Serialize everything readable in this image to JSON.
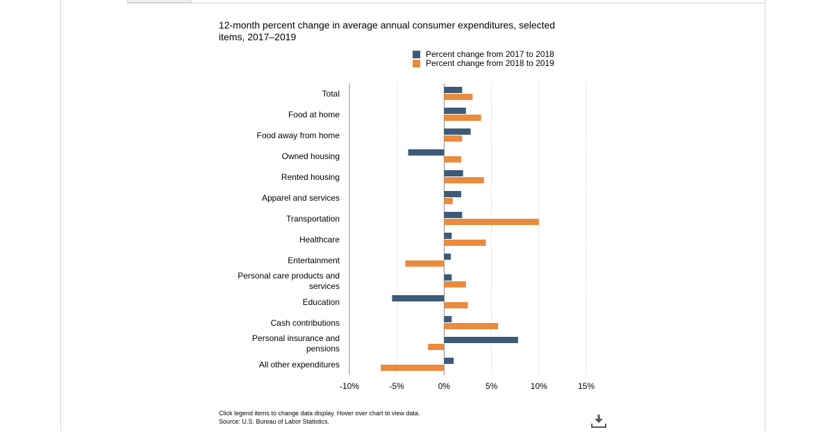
{
  "chart_data": {
    "type": "bar",
    "orientation": "horizontal",
    "title": "12-month percent change in average annual consumer expenditures, selected items, 2017–2019",
    "categories": [
      "Total",
      "Food at home",
      "Food away from home",
      "Owned housing",
      "Rented housing",
      "Apparel and services",
      "Transportation",
      "Healthcare",
      "Entertainment",
      "Personal care products and services",
      "Education",
      "Cash contributions",
      "Personal insurance and pensions",
      "All other expenditures"
    ],
    "series": [
      {
        "name": "Percent change from 2017 to 2018",
        "color": "#3d5a78",
        "values": [
          1.9,
          2.3,
          2.8,
          -3.8,
          2.0,
          1.8,
          1.9,
          0.8,
          0.7,
          0.8,
          -5.5,
          0.8,
          7.8,
          1.0
        ]
      },
      {
        "name": "Percent change from 2018 to 2019",
        "color": "#ea8b3e",
        "values": [
          3.0,
          3.9,
          1.9,
          1.8,
          4.2,
          0.9,
          10.0,
          4.4,
          -4.1,
          2.3,
          2.5,
          5.7,
          -1.7,
          -6.7
        ]
      }
    ],
    "xlim": [
      -10,
      15
    ],
    "x_ticks": [
      -10,
      -5,
      0,
      5,
      10,
      15
    ],
    "x_tick_labels": [
      "-10%",
      "-5%",
      "0%",
      "5%",
      "10%",
      "15%"
    ],
    "grid": "vertical-dotted",
    "legend_position": "top-right"
  },
  "footnote": {
    "line1": "Click legend items to change data display. Hover over chart to view data.",
    "line2": "Source: U.S. Bureau of Labor Statistics."
  },
  "icons": {
    "download": "download-icon"
  }
}
